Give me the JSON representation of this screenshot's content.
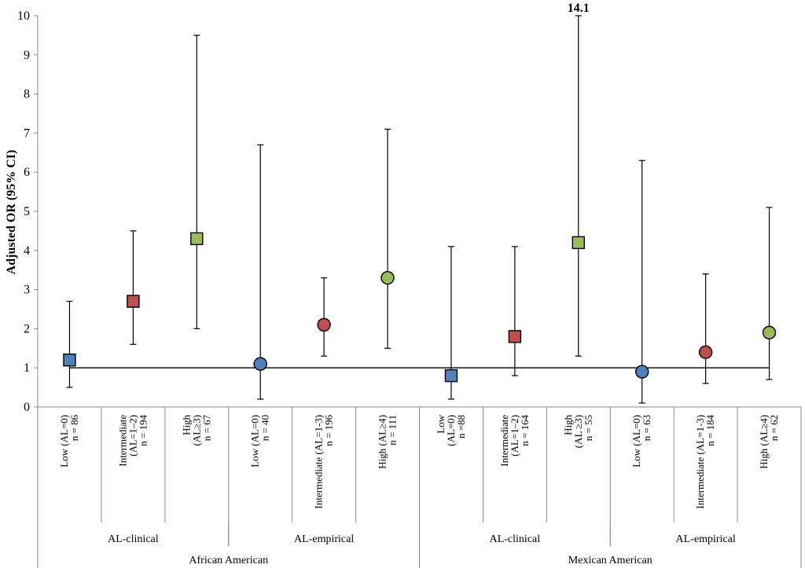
{
  "chart_data": {
    "type": "scatter",
    "title": "",
    "ylabel": "Adjusted OR (95% CI)",
    "xlabel": "",
    "ylim": [
      0,
      10
    ],
    "yticks": [
      "0",
      "1",
      "2",
      "3",
      "4",
      "5",
      "6",
      "7",
      "8",
      "9",
      "10"
    ],
    "reference_line": 1,
    "annotation": "14.1",
    "colors": {
      "low": "#4f81bd",
      "intermediate": "#c0504d",
      "high": "#9bbb59"
    },
    "points": [
      {
        "label": [
          "Low (AL=0)",
          "n = 86"
        ],
        "or": 1.2,
        "lo": 0.5,
        "hi": 2.7,
        "marker": "square",
        "level": "low"
      },
      {
        "label": [
          "Intermediate",
          "(AL=1–2)",
          "n = 194"
        ],
        "or": 2.7,
        "lo": 1.6,
        "hi": 4.5,
        "marker": "square",
        "level": "intermediate"
      },
      {
        "label": [
          "High",
          "(AL≥3)",
          "n = 67"
        ],
        "or": 4.3,
        "lo": 2.0,
        "hi": 9.5,
        "marker": "square",
        "level": "high"
      },
      {
        "label": [
          "Low (AL=0)",
          "n = 40"
        ],
        "or": 1.1,
        "lo": 0.2,
        "hi": 6.7,
        "marker": "circle",
        "level": "low"
      },
      {
        "label": [
          "Intermediate (AL=1-3)",
          "n = 196"
        ],
        "or": 2.1,
        "lo": 1.3,
        "hi": 3.3,
        "marker": "circle",
        "level": "intermediate"
      },
      {
        "label": [
          "High (AL≥4)",
          "n = 111"
        ],
        "or": 3.3,
        "lo": 1.5,
        "hi": 7.1,
        "marker": "circle",
        "level": "high"
      },
      {
        "label": [
          "Low",
          "(AL=0)",
          "n =88"
        ],
        "or": 0.8,
        "lo": 0.2,
        "hi": 4.1,
        "marker": "square",
        "level": "low"
      },
      {
        "label": [
          "Intermediate",
          "(AL=1–2)",
          "n = 164"
        ],
        "or": 1.8,
        "lo": 0.8,
        "hi": 4.1,
        "marker": "square",
        "level": "intermediate"
      },
      {
        "label": [
          "High",
          "(AL ≥3)",
          "n = 55"
        ],
        "or": 4.2,
        "lo": 1.3,
        "hi": 14.1,
        "marker": "square",
        "level": "high"
      },
      {
        "label": [
          "Low (AL=0)",
          "n = 63"
        ],
        "or": 0.9,
        "lo": 0.1,
        "hi": 6.3,
        "marker": "circle",
        "level": "low"
      },
      {
        "label": [
          "Intermediate (AL=1-3)",
          "n = 184"
        ],
        "or": 1.4,
        "lo": 0.6,
        "hi": 3.4,
        "marker": "circle",
        "level": "intermediate"
      },
      {
        "label": [
          "High (AL≥4)",
          "n = 62"
        ],
        "or": 1.9,
        "lo": 0.7,
        "hi": 5.1,
        "marker": "circle",
        "level": "high"
      }
    ],
    "groups_level2": [
      {
        "label": "AL-clinical",
        "start": 0,
        "end": 2
      },
      {
        "label": "AL-empirical",
        "start": 3,
        "end": 5
      },
      {
        "label": "AL-clinical",
        "start": 6,
        "end": 8
      },
      {
        "label": "AL-empirical",
        "start": 9,
        "end": 11
      }
    ],
    "groups_level1": [
      {
        "label": "African American",
        "start": 0,
        "end": 5
      },
      {
        "label": "Mexican American",
        "start": 6,
        "end": 11
      }
    ]
  }
}
